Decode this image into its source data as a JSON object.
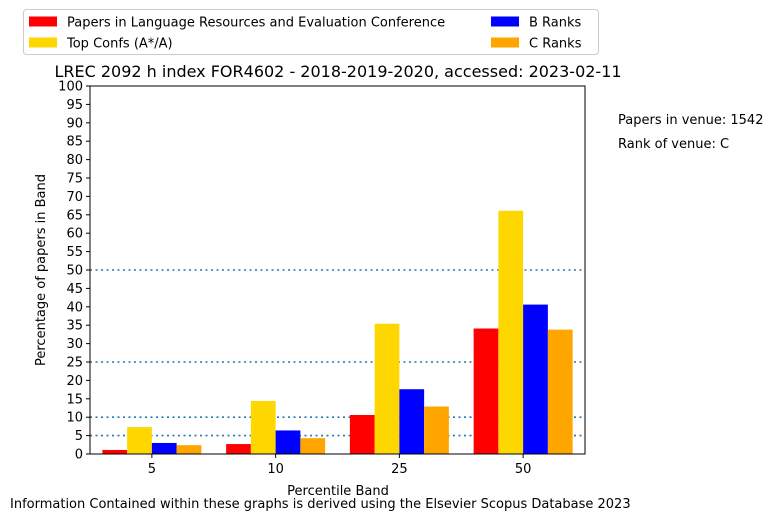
{
  "chart_data": {
    "type": "bar",
    "title": "LREC 2092 h index FOR4602 - 2018-2019-2020, accessed: 2023-02-11",
    "xlabel": "Percentile Band",
    "ylabel": "Percentage of papers in Band",
    "categories": [
      "5",
      "10",
      "25",
      "50"
    ],
    "ylim": [
      0,
      100
    ],
    "yticks": [
      0,
      5,
      10,
      15,
      20,
      25,
      30,
      35,
      40,
      45,
      50,
      55,
      60,
      65,
      70,
      75,
      80,
      85,
      90,
      95,
      100
    ],
    "reference_lines": [
      5,
      10,
      25,
      50
    ],
    "grid": false,
    "legend_position": "top",
    "series": [
      {
        "name": "Papers in Language Resources and Evaluation Conference",
        "color": "#ff0000",
        "values": [
          1.1,
          2.7,
          10.6,
          34.1
        ]
      },
      {
        "name": "Top Confs (A*/A)",
        "color": "#ffd700",
        "values": [
          7.3,
          14.4,
          35.4,
          66.1
        ]
      },
      {
        "name": "B Ranks",
        "color": "#0000ff",
        "values": [
          3.0,
          6.4,
          17.6,
          40.6
        ]
      },
      {
        "name": "C Ranks",
        "color": "#ffa500",
        "values": [
          2.4,
          4.3,
          12.9,
          33.8
        ]
      }
    ],
    "annotations": [
      "Papers in venue: 1542",
      "Rank of venue: C"
    ],
    "footer": "Information Contained within these graphs is derived using the Elsevier Scopus Database 2023"
  }
}
